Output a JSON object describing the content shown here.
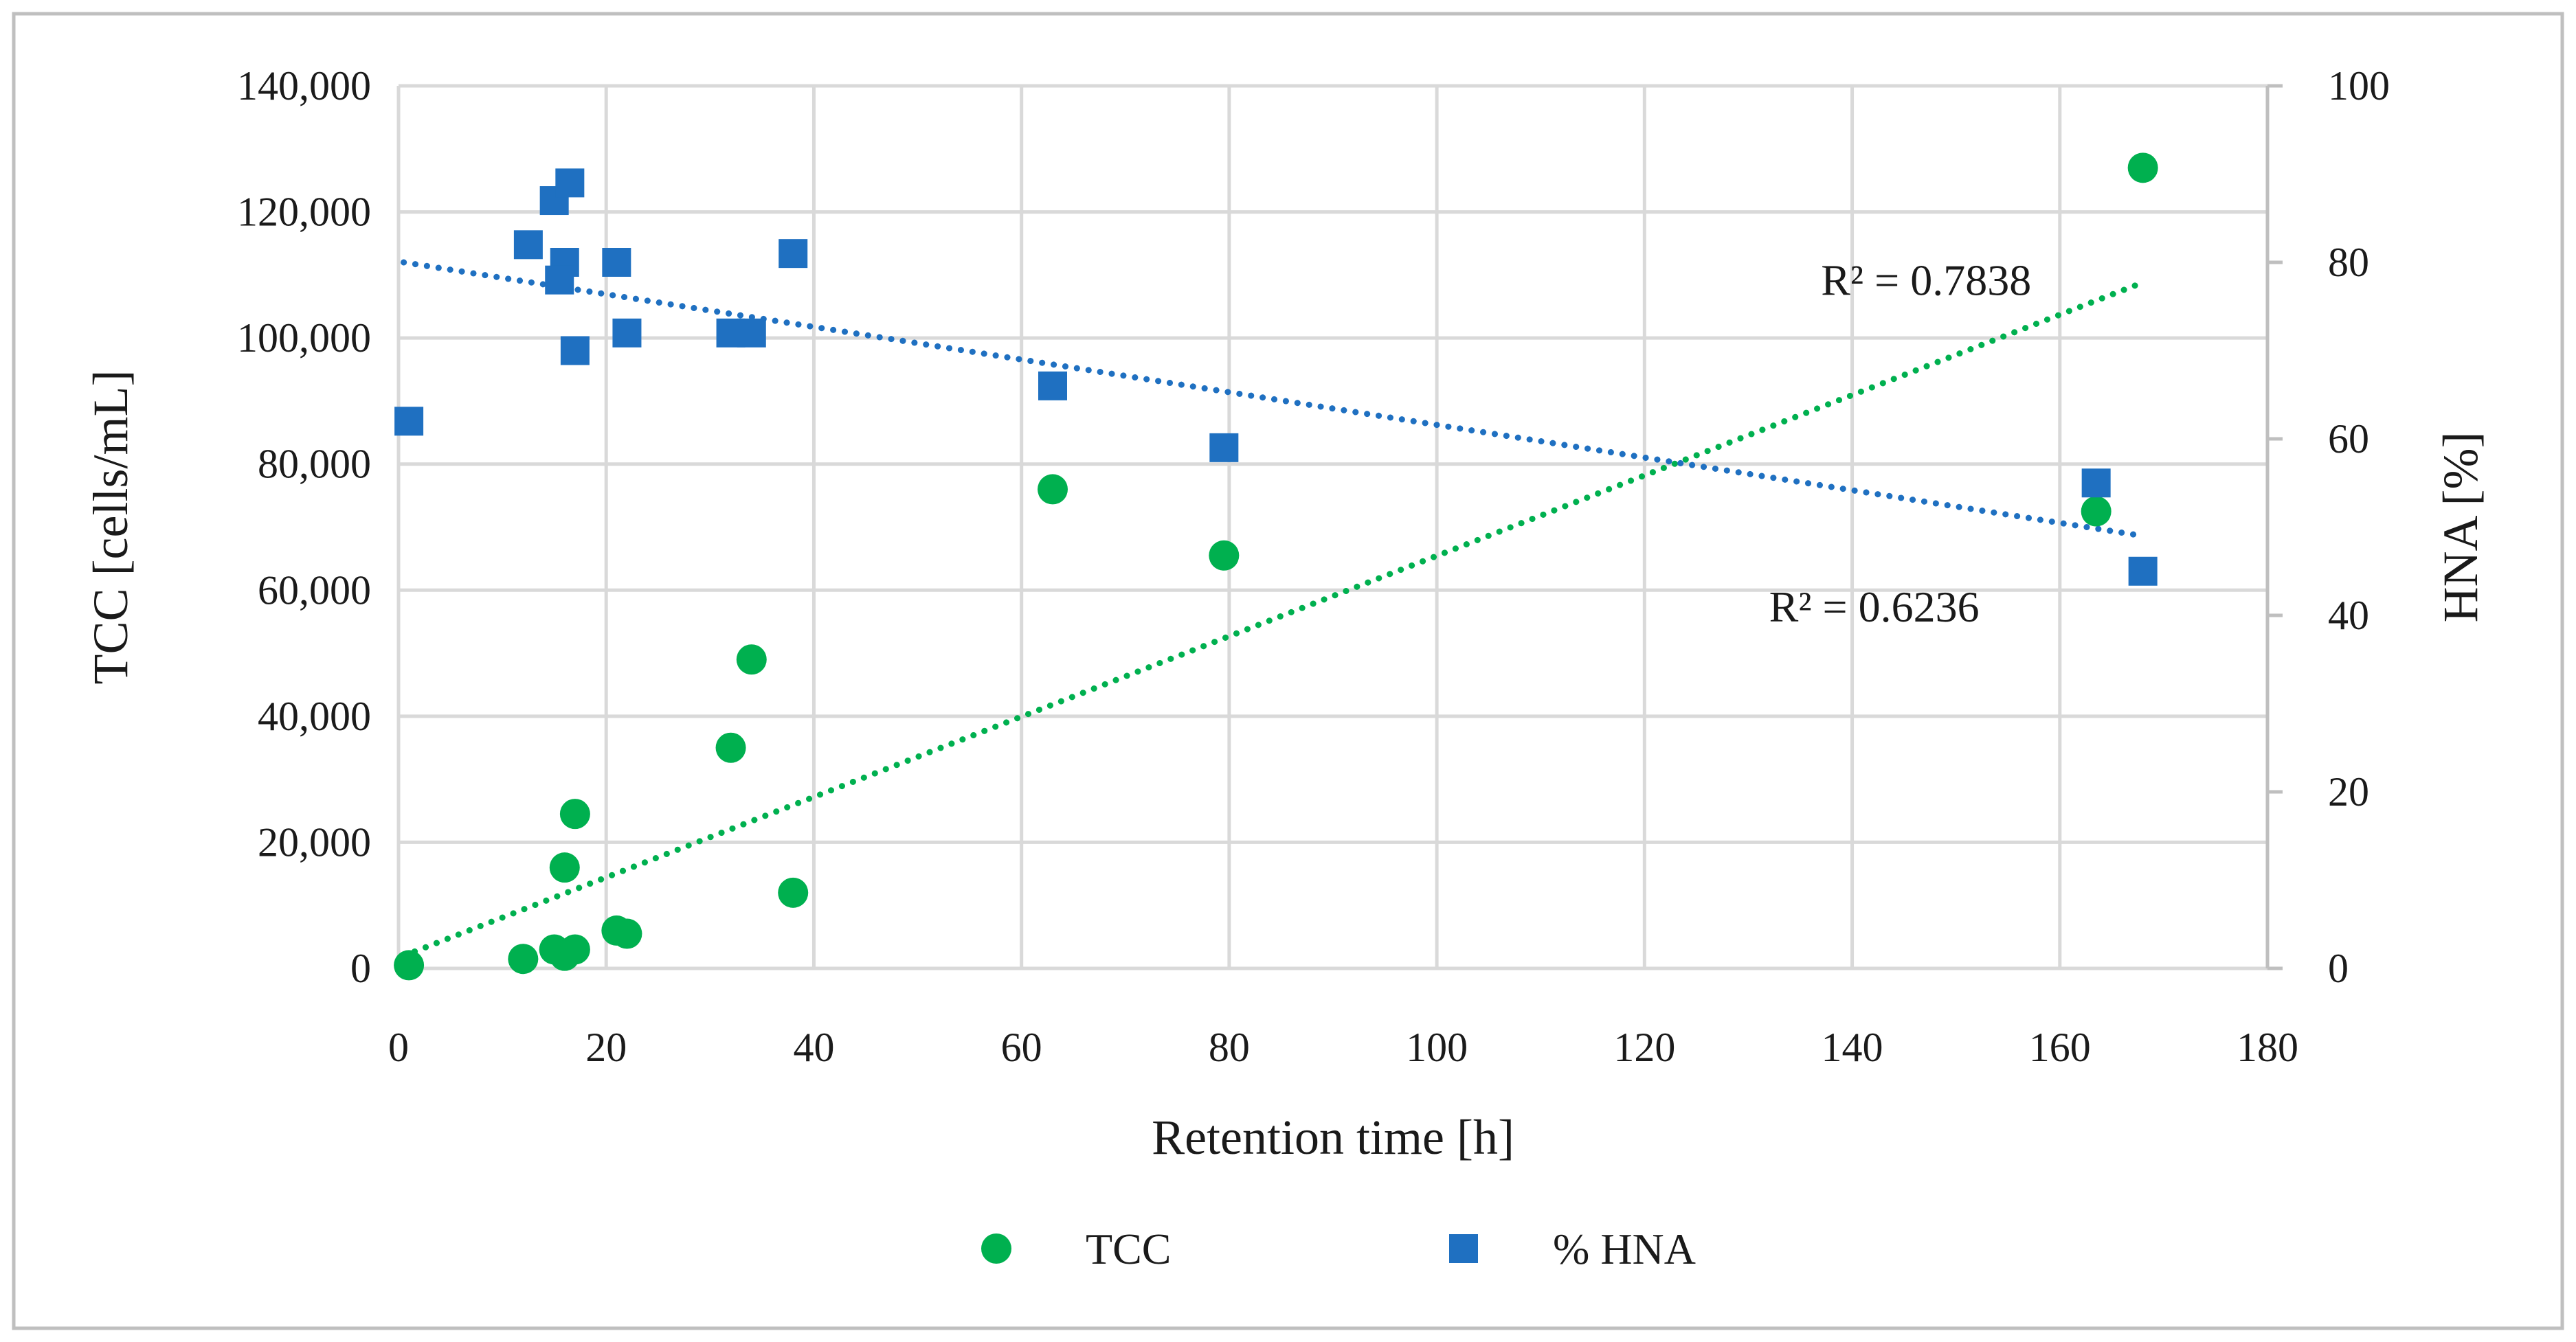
{
  "chart_data": {
    "type": "scatter",
    "title": "",
    "xlabel": "Retention time [h]",
    "ylabel_left": "TCC [cells/mL]",
    "ylabel_right": "HNA [%]",
    "xlim": [
      0,
      180
    ],
    "ylim_left": [
      0,
      140000
    ],
    "ylim_right": [
      0,
      100
    ],
    "x_ticks": [
      0,
      20,
      40,
      60,
      80,
      100,
      120,
      140,
      160,
      180
    ],
    "x_tick_labels": [
      "0",
      "20",
      "40",
      "60",
      "80",
      "100",
      "120",
      "140",
      "160",
      "180"
    ],
    "y_left_ticks": [
      0,
      20000,
      40000,
      60000,
      80000,
      100000,
      120000,
      140000
    ],
    "y_left_tick_labels": [
      "0",
      "20,000",
      "40,000",
      "60,000",
      "80,000",
      "100,000",
      "120,000",
      "140,000"
    ],
    "y_right_ticks": [
      0,
      20,
      40,
      60,
      80,
      100
    ],
    "y_right_tick_labels": [
      "0",
      "20",
      "40",
      "60",
      "80",
      "100"
    ],
    "grid": true,
    "legend_position": "bottom-center",
    "series": [
      {
        "name": "TCC",
        "axis": "left",
        "marker": "circle",
        "color": "#00b04f",
        "x": [
          1,
          12,
          15,
          16,
          16,
          17,
          17,
          21,
          22,
          32,
          34,
          38,
          63,
          79.5,
          163.5,
          168
        ],
        "y": [
          500,
          1500,
          3000,
          2000,
          16000,
          24500,
          3000,
          6000,
          5500,
          35000,
          49000,
          12000,
          76000,
          65500,
          72500,
          127000
        ],
        "trendline": {
          "type": "linear",
          "x": [
            0.5,
            168
          ],
          "y": [
            2000,
            108800
          ],
          "color": "#00b04f"
        }
      },
      {
        "name": "% HNA",
        "axis": "right",
        "marker": "square",
        "color": "#1f70c1",
        "x": [
          1,
          12.5,
          15,
          16,
          15.5,
          17,
          16.5,
          21,
          22,
          32,
          34,
          38,
          63,
          79.5,
          163.5,
          168
        ],
        "y": [
          62,
          82,
          87,
          80,
          78,
          70,
          89,
          80,
          72,
          72,
          72,
          81,
          66,
          59,
          55,
          45
        ],
        "trendline": {
          "type": "linear",
          "x": [
            0.5,
            168
          ],
          "y": [
            80,
            49
          ],
          "color": "#1f70c1"
        }
      }
    ],
    "annotations": [
      {
        "text": "R² = 0.7838",
        "x": 137,
        "y_right": 78
      },
      {
        "text": "R² = 0.6236",
        "x": 132,
        "y_right": 41
      }
    ],
    "legend": [
      {
        "label": "TCC",
        "marker": "circle",
        "color": "#00b04f"
      },
      {
        "label": "% HNA",
        "marker": "square",
        "color": "#1f70c1"
      }
    ]
  }
}
